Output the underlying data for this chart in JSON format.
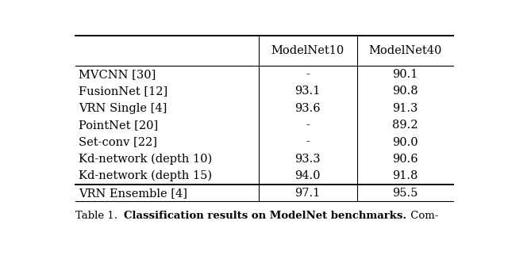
{
  "columns": [
    "",
    "ModelNet10",
    "ModelNet40"
  ],
  "rows": [
    [
      "MVCNN [30]",
      "-",
      "90.1"
    ],
    [
      "FusionNet [12]",
      "93.1",
      "90.8"
    ],
    [
      "VRN Single [4]",
      "93.6",
      "91.3"
    ],
    [
      "PointNet [20]",
      "-",
      "89.2"
    ],
    [
      "Set-conv [22]",
      "-",
      "90.0"
    ],
    [
      "Kd-network (depth 10)",
      "93.3",
      "90.6"
    ],
    [
      "Kd-network (depth 15)",
      "94.0",
      "91.8"
    ],
    [
      "VRN Ensemble [4]",
      "97.1",
      "95.5"
    ]
  ],
  "caption_prefix": "Table 1.  ",
  "caption_bold": "Classification results on ModelNet benchmarks.",
  "caption_suffix": " Com-",
  "background_color": "#ffffff",
  "text_color": "#000000",
  "font_size": 10.5,
  "caption_font_size": 9.5,
  "fig_width": 6.4,
  "fig_height": 3.22,
  "dpi": 100
}
